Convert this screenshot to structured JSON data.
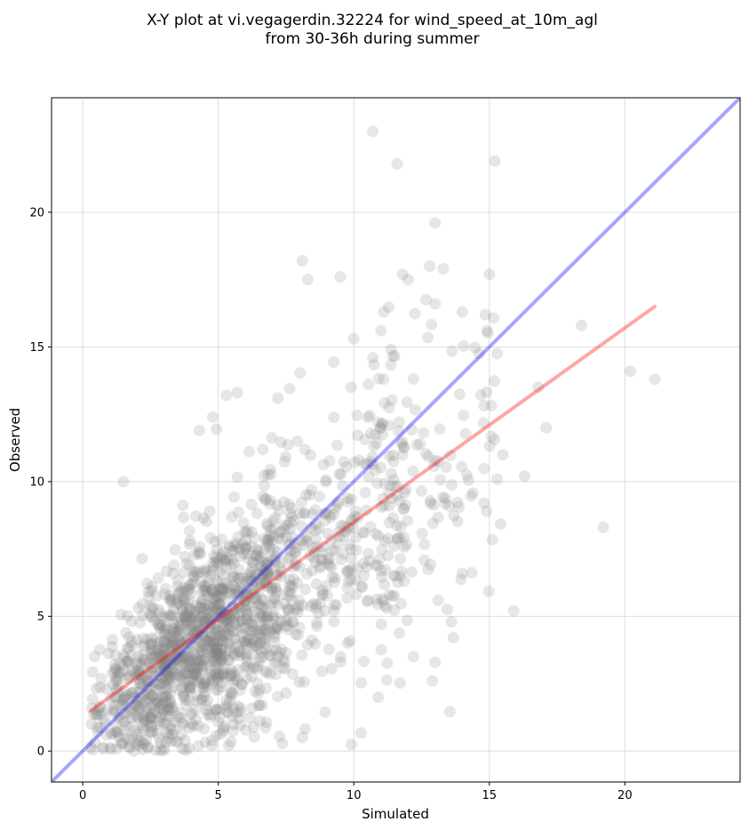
{
  "chart_data": {
    "type": "scatter",
    "title_lines": [
      "X-Y plot at vi.vegagerdin.32224 for wind_speed_at_10m_agl",
      "from 30-36h during summer"
    ],
    "xlabel": "Simulated",
    "ylabel": "Observed",
    "xlim": [
      -1.15,
      24.25
    ],
    "ylim": [
      -1.15,
      24.25
    ],
    "xticks": [
      "0",
      "5",
      "10",
      "15",
      "20"
    ],
    "yticks": [
      "0",
      "5",
      "10",
      "15",
      "20"
    ],
    "grid": true,
    "point_color": "#808080",
    "one_to_one_line": {
      "from": [
        -1.15,
        -1.15
      ],
      "to": [
        24.25,
        24.25
      ],
      "color": "#0000ff"
    },
    "regression_line": {
      "from": [
        0.3,
        1.5
      ],
      "to": [
        21.1,
        16.5
      ],
      "color": "#ff0000"
    },
    "highlighted_points": [
      [
        10.7,
        23.0
      ],
      [
        11.6,
        21.8
      ],
      [
        15.2,
        21.9
      ],
      [
        13.0,
        19.6
      ],
      [
        8.1,
        18.2
      ],
      [
        8.3,
        17.5
      ],
      [
        9.5,
        17.6
      ],
      [
        12.8,
        18.0
      ],
      [
        13.3,
        17.9
      ],
      [
        15.0,
        17.7
      ],
      [
        11.8,
        17.7
      ],
      [
        12.0,
        17.5
      ],
      [
        13.0,
        16.6
      ],
      [
        14.0,
        16.3
      ],
      [
        10.7,
        14.6
      ],
      [
        11.1,
        16.3
      ],
      [
        18.4,
        15.8
      ],
      [
        20.2,
        14.1
      ],
      [
        21.1,
        13.8
      ],
      [
        16.8,
        13.5
      ],
      [
        17.1,
        12.0
      ],
      [
        15.5,
        11.0
      ],
      [
        16.3,
        10.2
      ],
      [
        14.8,
        9.2
      ],
      [
        19.2,
        8.3
      ],
      [
        15.9,
        5.2
      ],
      [
        13.0,
        3.3
      ],
      [
        12.9,
        2.6
      ],
      [
        1.5,
        10.0
      ],
      [
        4.8,
        12.4
      ],
      [
        5.7,
        13.3
      ],
      [
        5.3,
        13.2
      ],
      [
        4.3,
        11.9
      ],
      [
        7.2,
        13.1
      ],
      [
        10.0,
        15.3
      ],
      [
        11.0,
        15.6
      ],
      [
        13.6,
        4.8
      ],
      [
        14.0,
        6.6
      ],
      [
        12.2,
        3.5
      ],
      [
        10.9,
        2.0
      ]
    ],
    "scatter_seed": 32224,
    "scatter_count": 1700
  }
}
